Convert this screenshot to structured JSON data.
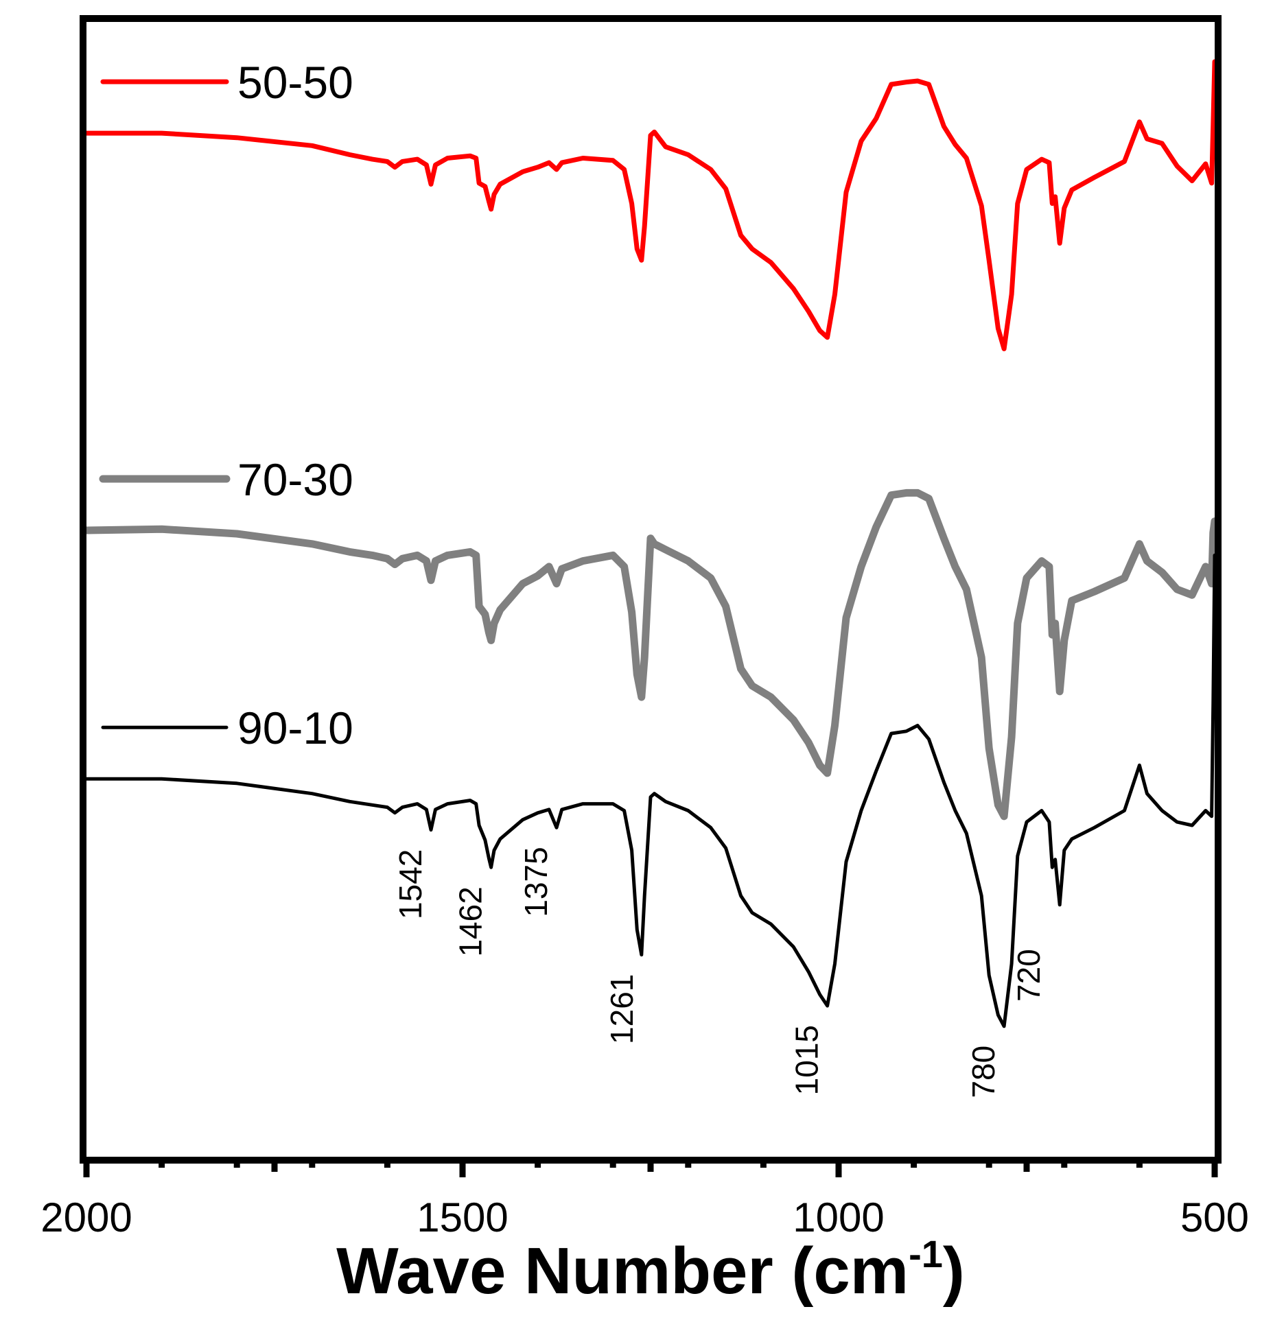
{
  "chart_data": {
    "type": "line",
    "title": "",
    "xlabel": "Wave Number",
    "xlabel_unit_base": "(cm",
    "xlabel_unit_sup": "-1",
    "xlabel_unit_close": ")",
    "ylabel": "",
    "xlim": [
      2000,
      500
    ],
    "x_reversed": true,
    "x_ticks": [
      2000,
      1500,
      1000,
      500
    ],
    "x_tick_labels": [
      "2000",
      "1500",
      "1000",
      "500"
    ],
    "ylim": [
      0,
      1
    ],
    "grid": false,
    "legend_placement": "left, beside each trace",
    "series": [
      {
        "name": "50-50",
        "color": "#ff0000",
        "points": [
          [
            2000,
            0.902
          ],
          [
            1900,
            0.902
          ],
          [
            1800,
            0.898
          ],
          [
            1700,
            0.891
          ],
          [
            1650,
            0.883
          ],
          [
            1620,
            0.879
          ],
          [
            1600,
            0.877
          ],
          [
            1590,
            0.872
          ],
          [
            1580,
            0.877
          ],
          [
            1560,
            0.879
          ],
          [
            1548,
            0.874
          ],
          [
            1542,
            0.857
          ],
          [
            1536,
            0.874
          ],
          [
            1520,
            0.88
          ],
          [
            1490,
            0.882
          ],
          [
            1482,
            0.88
          ],
          [
            1478,
            0.858
          ],
          [
            1470,
            0.855
          ],
          [
            1465,
            0.842
          ],
          [
            1462,
            0.835
          ],
          [
            1458,
            0.848
          ],
          [
            1450,
            0.857
          ],
          [
            1420,
            0.868
          ],
          [
            1400,
            0.872
          ],
          [
            1385,
            0.876
          ],
          [
            1375,
            0.87
          ],
          [
            1368,
            0.876
          ],
          [
            1340,
            0.88
          ],
          [
            1300,
            0.878
          ],
          [
            1285,
            0.87
          ],
          [
            1275,
            0.84
          ],
          [
            1268,
            0.8
          ],
          [
            1262,
            0.79
          ],
          [
            1258,
            0.82
          ],
          [
            1250,
            0.9
          ],
          [
            1245,
            0.903
          ],
          [
            1230,
            0.89
          ],
          [
            1200,
            0.883
          ],
          [
            1170,
            0.87
          ],
          [
            1150,
            0.853
          ],
          [
            1130,
            0.812
          ],
          [
            1115,
            0.8
          ],
          [
            1090,
            0.788
          ],
          [
            1060,
            0.765
          ],
          [
            1040,
            0.745
          ],
          [
            1025,
            0.728
          ],
          [
            1015,
            0.722
          ],
          [
            1005,
            0.76
          ],
          [
            990,
            0.85
          ],
          [
            970,
            0.895
          ],
          [
            950,
            0.915
          ],
          [
            930,
            0.945
          ],
          [
            910,
            0.947
          ],
          [
            895,
            0.948
          ],
          [
            880,
            0.945
          ],
          [
            860,
            0.908
          ],
          [
            845,
            0.892
          ],
          [
            830,
            0.88
          ],
          [
            810,
            0.838
          ],
          [
            800,
            0.79
          ],
          [
            788,
            0.73
          ],
          [
            780,
            0.712
          ],
          [
            770,
            0.76
          ],
          [
            762,
            0.84
          ],
          [
            750,
            0.87
          ],
          [
            730,
            0.879
          ],
          [
            720,
            0.876
          ],
          [
            716,
            0.84
          ],
          [
            712,
            0.846
          ],
          [
            706,
            0.805
          ],
          [
            700,
            0.836
          ],
          [
            690,
            0.852
          ],
          [
            660,
            0.863
          ],
          [
            620,
            0.877
          ],
          [
            600,
            0.912
          ],
          [
            590,
            0.897
          ],
          [
            570,
            0.893
          ],
          [
            550,
            0.873
          ],
          [
            530,
            0.86
          ],
          [
            512,
            0.875
          ],
          [
            504,
            0.858
          ],
          [
            502,
            0.91
          ],
          [
            500,
            0.965
          ]
        ]
      },
      {
        "name": "70-30",
        "color": "#808080",
        "points": [
          [
            2000,
            0.552
          ],
          [
            1900,
            0.553
          ],
          [
            1800,
            0.549
          ],
          [
            1700,
            0.54
          ],
          [
            1650,
            0.533
          ],
          [
            1620,
            0.53
          ],
          [
            1600,
            0.527
          ],
          [
            1590,
            0.522
          ],
          [
            1580,
            0.527
          ],
          [
            1560,
            0.53
          ],
          [
            1548,
            0.525
          ],
          [
            1542,
            0.508
          ],
          [
            1536,
            0.525
          ],
          [
            1520,
            0.53
          ],
          [
            1490,
            0.533
          ],
          [
            1482,
            0.53
          ],
          [
            1478,
            0.485
          ],
          [
            1470,
            0.478
          ],
          [
            1465,
            0.462
          ],
          [
            1462,
            0.455
          ],
          [
            1458,
            0.47
          ],
          [
            1450,
            0.482
          ],
          [
            1420,
            0.505
          ],
          [
            1400,
            0.512
          ],
          [
            1385,
            0.52
          ],
          [
            1375,
            0.505
          ],
          [
            1368,
            0.518
          ],
          [
            1340,
            0.525
          ],
          [
            1300,
            0.53
          ],
          [
            1285,
            0.52
          ],
          [
            1275,
            0.48
          ],
          [
            1268,
            0.425
          ],
          [
            1262,
            0.405
          ],
          [
            1258,
            0.44
          ],
          [
            1250,
            0.545
          ],
          [
            1245,
            0.54
          ],
          [
            1230,
            0.535
          ],
          [
            1200,
            0.525
          ],
          [
            1170,
            0.51
          ],
          [
            1150,
            0.485
          ],
          [
            1130,
            0.43
          ],
          [
            1115,
            0.415
          ],
          [
            1090,
            0.405
          ],
          [
            1060,
            0.385
          ],
          [
            1040,
            0.365
          ],
          [
            1025,
            0.345
          ],
          [
            1015,
            0.338
          ],
          [
            1005,
            0.38
          ],
          [
            990,
            0.475
          ],
          [
            970,
            0.52
          ],
          [
            950,
            0.555
          ],
          [
            930,
            0.583
          ],
          [
            910,
            0.585
          ],
          [
            895,
            0.585
          ],
          [
            880,
            0.58
          ],
          [
            860,
            0.545
          ],
          [
            845,
            0.52
          ],
          [
            830,
            0.5
          ],
          [
            810,
            0.44
          ],
          [
            800,
            0.36
          ],
          [
            788,
            0.31
          ],
          [
            780,
            0.3
          ],
          [
            770,
            0.37
          ],
          [
            762,
            0.47
          ],
          [
            750,
            0.51
          ],
          [
            730,
            0.525
          ],
          [
            720,
            0.52
          ],
          [
            716,
            0.46
          ],
          [
            712,
            0.47
          ],
          [
            706,
            0.41
          ],
          [
            700,
            0.455
          ],
          [
            690,
            0.49
          ],
          [
            660,
            0.498
          ],
          [
            620,
            0.51
          ],
          [
            600,
            0.54
          ],
          [
            590,
            0.525
          ],
          [
            570,
            0.515
          ],
          [
            550,
            0.5
          ],
          [
            530,
            0.495
          ],
          [
            512,
            0.52
          ],
          [
            504,
            0.505
          ],
          [
            502,
            0.55
          ],
          [
            500,
            0.56
          ]
        ]
      },
      {
        "name": "90-10",
        "color": "#000000",
        "points": [
          [
            2000,
            0.333
          ],
          [
            1900,
            0.333
          ],
          [
            1800,
            0.329
          ],
          [
            1700,
            0.32
          ],
          [
            1650,
            0.313
          ],
          [
            1620,
            0.31
          ],
          [
            1600,
            0.308
          ],
          [
            1590,
            0.303
          ],
          [
            1580,
            0.308
          ],
          [
            1560,
            0.311
          ],
          [
            1548,
            0.306
          ],
          [
            1542,
            0.288
          ],
          [
            1536,
            0.306
          ],
          [
            1520,
            0.311
          ],
          [
            1490,
            0.314
          ],
          [
            1482,
            0.311
          ],
          [
            1478,
            0.292
          ],
          [
            1470,
            0.279
          ],
          [
            1465,
            0.263
          ],
          [
            1462,
            0.255
          ],
          [
            1458,
            0.27
          ],
          [
            1450,
            0.28
          ],
          [
            1420,
            0.297
          ],
          [
            1400,
            0.303
          ],
          [
            1385,
            0.306
          ],
          [
            1375,
            0.29
          ],
          [
            1368,
            0.306
          ],
          [
            1340,
            0.311
          ],
          [
            1300,
            0.311
          ],
          [
            1285,
            0.305
          ],
          [
            1275,
            0.27
          ],
          [
            1268,
            0.2
          ],
          [
            1262,
            0.178
          ],
          [
            1258,
            0.23
          ],
          [
            1250,
            0.317
          ],
          [
            1245,
            0.32
          ],
          [
            1230,
            0.313
          ],
          [
            1200,
            0.305
          ],
          [
            1170,
            0.29
          ],
          [
            1150,
            0.272
          ],
          [
            1130,
            0.23
          ],
          [
            1115,
            0.215
          ],
          [
            1090,
            0.205
          ],
          [
            1060,
            0.185
          ],
          [
            1040,
            0.163
          ],
          [
            1025,
            0.143
          ],
          [
            1015,
            0.133
          ],
          [
            1005,
            0.17
          ],
          [
            990,
            0.26
          ],
          [
            970,
            0.305
          ],
          [
            950,
            0.34
          ],
          [
            930,
            0.373
          ],
          [
            910,
            0.375
          ],
          [
            895,
            0.38
          ],
          [
            880,
            0.368
          ],
          [
            860,
            0.33
          ],
          [
            845,
            0.305
          ],
          [
            830,
            0.285
          ],
          [
            810,
            0.23
          ],
          [
            800,
            0.16
          ],
          [
            788,
            0.125
          ],
          [
            780,
            0.115
          ],
          [
            770,
            0.17
          ],
          [
            762,
            0.265
          ],
          [
            750,
            0.295
          ],
          [
            730,
            0.305
          ],
          [
            720,
            0.295
          ],
          [
            716,
            0.255
          ],
          [
            712,
            0.262
          ],
          [
            706,
            0.222
          ],
          [
            700,
            0.27
          ],
          [
            690,
            0.28
          ],
          [
            660,
            0.29
          ],
          [
            620,
            0.305
          ],
          [
            600,
            0.345
          ],
          [
            590,
            0.32
          ],
          [
            570,
            0.305
          ],
          [
            550,
            0.295
          ],
          [
            530,
            0.292
          ],
          [
            512,
            0.305
          ],
          [
            504,
            0.3
          ],
          [
            502,
            0.4
          ],
          [
            500,
            0.53
          ]
        ]
      }
    ],
    "peak_annotations": [
      {
        "label": "1542",
        "x": 1542,
        "y": 0.288
      },
      {
        "label": "1462",
        "x": 1462,
        "y": 0.255
      },
      {
        "label": "1375",
        "x": 1375,
        "y": 0.29
      },
      {
        "label": "1261",
        "x": 1261,
        "y": 0.178
      },
      {
        "label": "1015",
        "x": 1015,
        "y": 0.133
      },
      {
        "label": "780",
        "x": 780,
        "y": 0.115
      },
      {
        "label": "720",
        "x": 720,
        "y": 0.2
      }
    ]
  }
}
